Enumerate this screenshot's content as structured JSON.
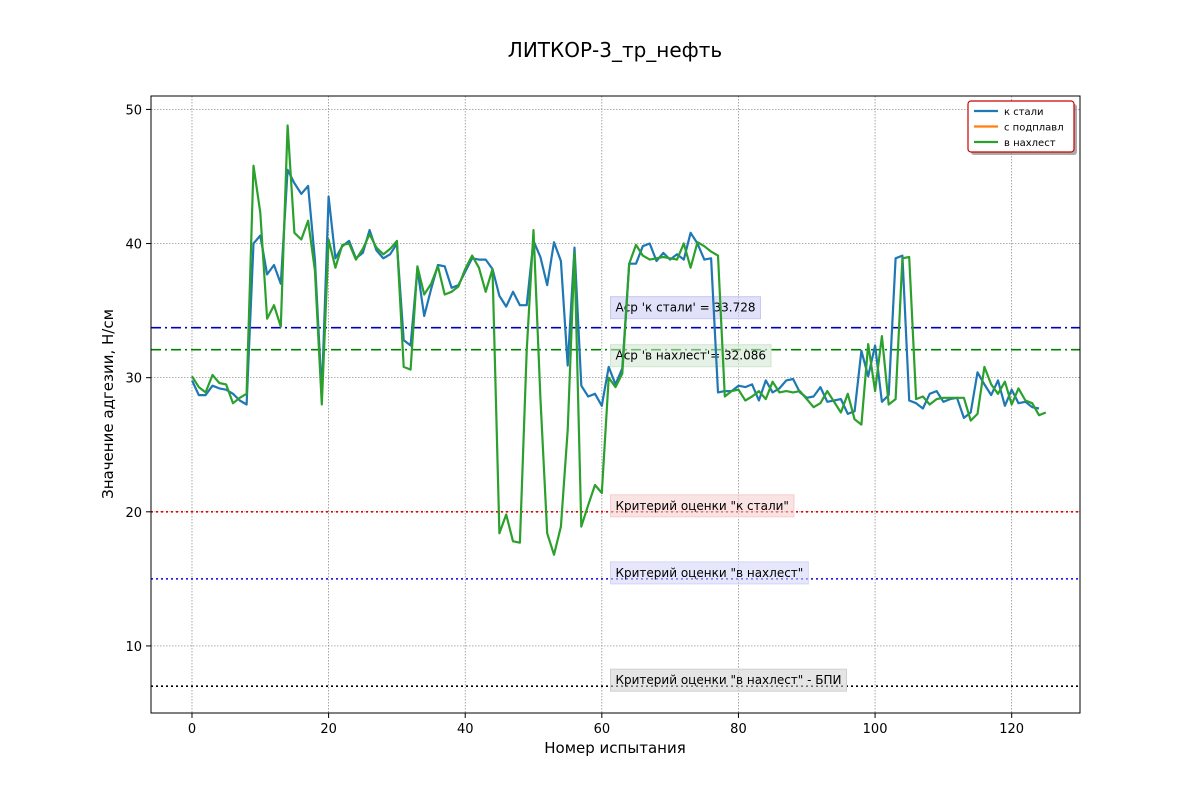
{
  "chart_data": {
    "type": "line",
    "title": "ЛИТКОР-3_тр_нефть",
    "xlabel": "Номер испытания",
    "ylabel": "Значение адгезии, Н/см",
    "xlim": [
      -6,
      130
    ],
    "ylim": [
      5,
      51
    ],
    "xticks": [
      0,
      20,
      40,
      60,
      80,
      100,
      120
    ],
    "yticks": [
      10,
      20,
      30,
      40,
      50
    ],
    "grid": true,
    "legend_position": "top-right",
    "series": [
      {
        "name": "к стали",
        "color": "#1f77b4",
        "y": [
          29.8,
          28.7,
          28.7,
          29.4,
          29.2,
          29.1,
          28.8,
          28.3,
          28.0,
          40.0,
          40.6,
          37.7,
          38.4,
          37.0,
          45.5,
          44.5,
          43.7,
          44.3,
          38.8,
          28.8,
          43.5,
          38.9,
          39.8,
          40.2,
          38.9,
          39.3,
          41.0,
          39.5,
          38.9,
          39.2,
          40.0,
          32.8,
          32.4,
          38.1,
          34.6,
          36.6,
          38.4,
          38.3,
          36.7,
          36.9,
          37.9,
          38.9,
          38.8,
          38.8,
          38.1,
          36.1,
          35.3,
          36.4,
          35.4,
          35.4,
          40.2,
          39.0,
          36.9,
          40.1,
          38.7,
          30.9,
          39.7,
          29.4,
          28.6,
          28.8,
          27.9,
          30.8,
          29.5,
          30.7,
          38.5,
          38.5,
          39.8,
          40.0,
          38.7,
          39.3,
          38.8,
          39.2,
          38.8,
          40.8,
          40.0,
          38.8,
          38.9,
          28.9,
          29.0,
          29.0,
          29.4,
          29.3,
          29.5,
          28.3,
          29.8,
          28.9,
          29.2,
          29.8,
          29.9,
          28.9,
          28.5,
          28.6,
          29.3,
          28.2,
          28.3,
          28.4,
          27.3,
          27.5,
          32.0,
          30.1,
          32.4,
          28.2,
          28.7,
          38.9,
          39.1,
          28.3,
          28.1,
          27.7,
          28.8,
          29.0,
          28.2,
          28.4,
          28.5,
          27.0,
          27.4,
          30.4,
          29.5,
          28.7,
          29.8,
          27.9,
          29.1,
          28.1,
          28.2,
          27.8,
          27.7
        ]
      },
      {
        "name": "с подплавл",
        "color": "#ff7f0e",
        "y": []
      },
      {
        "name": "в нахлест",
        "color": "#2ca02c",
        "y": [
          30.1,
          29.3,
          28.9,
          30.2,
          29.6,
          29.5,
          28.1,
          28.5,
          28.8,
          45.8,
          42.3,
          34.4,
          35.4,
          33.8,
          48.8,
          40.8,
          40.3,
          41.7,
          38.0,
          28.0,
          40.3,
          38.2,
          39.9,
          40.0,
          38.8,
          39.6,
          40.7,
          39.7,
          39.2,
          39.6,
          40.2,
          30.8,
          30.6,
          38.3,
          36.2,
          37.0,
          38.3,
          36.2,
          36.4,
          36.8,
          38.1,
          39.1,
          38.2,
          36.4,
          38.1,
          18.4,
          19.8,
          17.8,
          17.7,
          32.0,
          41.0,
          28.5,
          18.4,
          16.8,
          18.9,
          26.1,
          39.3,
          18.9,
          20.5,
          22.0,
          21.4,
          30.0,
          29.3,
          30.3,
          38.5,
          39.9,
          39.1,
          38.8,
          38.9,
          39.0,
          38.9,
          38.8,
          40.0,
          38.2,
          40.1,
          39.8,
          39.4,
          39.1,
          28.6,
          29.0,
          29.1,
          28.3,
          28.6,
          29.0,
          28.4,
          29.7,
          28.9,
          29.0,
          28.9,
          29.0,
          28.4,
          27.8,
          28.1,
          29.0,
          28.2,
          27.4,
          28.8,
          26.9,
          26.5,
          32.5,
          29.0,
          33.1,
          28.0,
          28.4,
          38.9,
          39.0,
          28.4,
          28.6,
          28.0,
          28.4,
          28.5,
          28.5,
          28.5,
          28.5,
          26.8,
          27.3,
          30.8,
          29.5,
          28.8,
          29.7,
          28.0,
          29.2,
          28.3,
          28.1,
          27.2,
          27.4
        ]
      }
    ],
    "hlines": [
      {
        "y": 33.728,
        "color": "#0000bb",
        "style": "dashdot",
        "label": "Аср 'к стали' = 33.728",
        "box_color": "#c8c8f5",
        "label_offset": 18
      },
      {
        "y": 32.086,
        "color": "#008000",
        "style": "dashdot",
        "label": "Аср 'в нахлест'= 32.086",
        "box_color": "#cfe5cf",
        "label_offset": -8
      },
      {
        "y": 20,
        "color": "#ee0000",
        "style": "dotted",
        "label": "Критерий оценки \"к стали\"",
        "box_color": "#f6cccc",
        "label_offset": 4
      },
      {
        "y": 15,
        "color": "#0000ee",
        "style": "dotted",
        "label": "Критерий оценки \"в нахлест\"",
        "box_color": "#d4d4f7",
        "label_offset": 4
      },
      {
        "y": 7,
        "color": "#000000",
        "style": "dotted",
        "label": "Критерий оценки \"в нахлест\" - БПИ",
        "box_color": "#d0d0d0",
        "label_offset": 4
      }
    ],
    "annotation_x": 62
  }
}
